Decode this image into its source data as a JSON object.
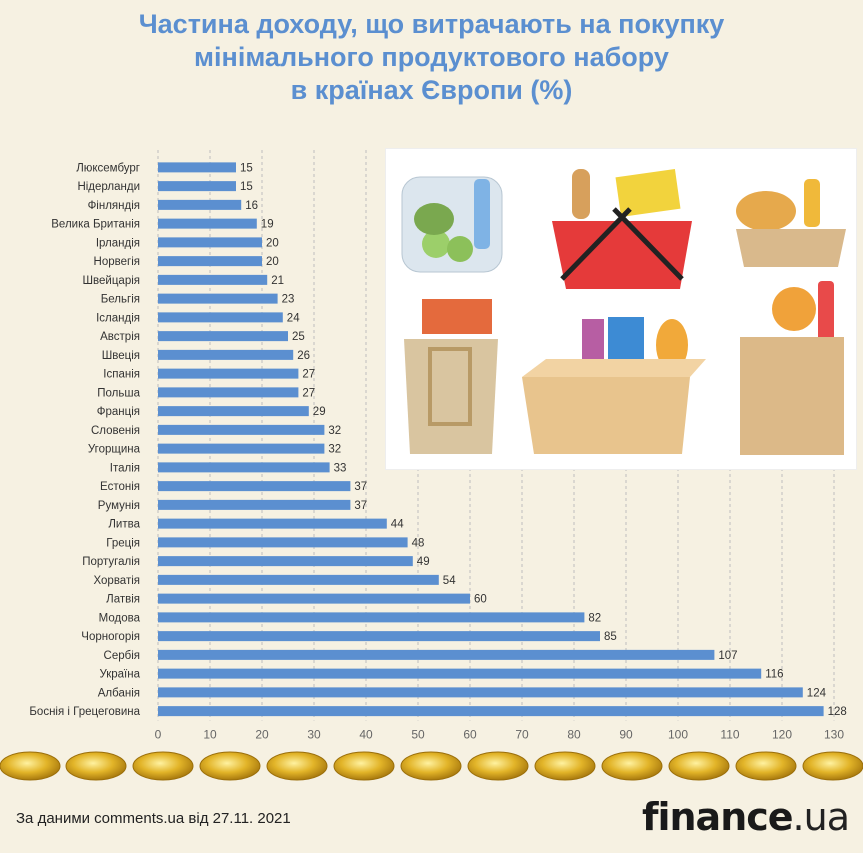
{
  "title": {
    "line1": "Частина доходу, що витрачають на покупку",
    "line2": "мінімального продуктового набору",
    "line3": "в країнах Європи (%)"
  },
  "colors": {
    "bar": "#5b8fd0",
    "title": "#5b8fd0",
    "background": "#f6f1e2"
  },
  "chart_data": {
    "type": "bar",
    "orientation": "horizontal",
    "categories": [
      "Люксембург",
      "Нідерланди",
      "Фінляндія",
      "Велика Британія",
      "Ірландія",
      "Норвегія",
      "Швейцарія",
      "Бельгія",
      "Ісландія",
      "Австрія",
      "Швеція",
      "Іспанія",
      "Польша",
      "Франція",
      "Словенія",
      "Угорщина",
      "Італія",
      "Естонія",
      "Румунія",
      "Литва",
      "Греція",
      "Португалія",
      "Хорватія",
      "Латвія",
      "Модова",
      "Чорногорія",
      "Сербія",
      "Україна",
      "Албанія",
      "Боснія і Грецеговина"
    ],
    "values": [
      15,
      15,
      16,
      19,
      20,
      20,
      21,
      23,
      24,
      25,
      26,
      27,
      27,
      29,
      32,
      32,
      33,
      37,
      37,
      44,
      48,
      49,
      54,
      60,
      82,
      85,
      107,
      116,
      124,
      128
    ],
    "xlim": [
      0,
      130
    ],
    "xticks": [
      "0",
      "10",
      "20",
      "30",
      "40",
      "50",
      "60",
      "70",
      "80",
      "90",
      "100",
      "110",
      "120",
      "130"
    ],
    "grid": "vertical dashed"
  },
  "illustration": {
    "icons": [
      "grocery-bag-icon",
      "shopping-basket-icon",
      "bread-basket-icon",
      "tote-bag-icon",
      "grocery-box-icon",
      "paper-bag-icon"
    ]
  },
  "footer": {
    "source": "За даними comments.ua від 27.11. 2021",
    "brand_bold": "finance",
    "brand_suffix": ".ua"
  }
}
